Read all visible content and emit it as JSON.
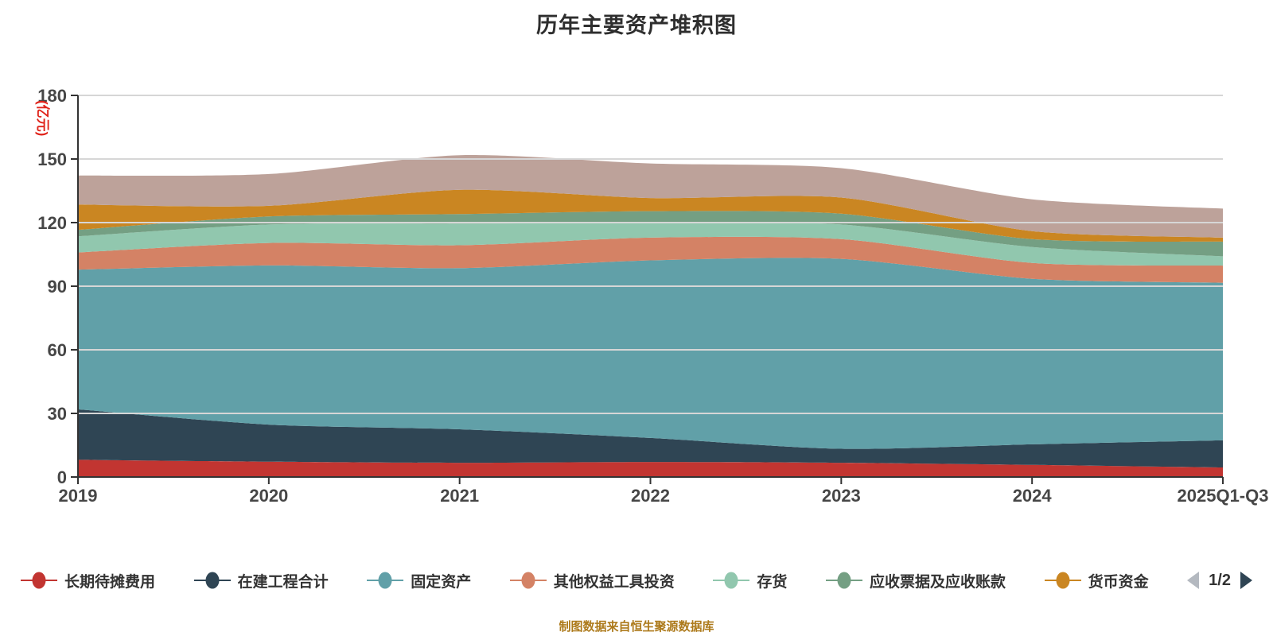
{
  "title": "历年主要资产堆积图",
  "chart_data": {
    "type": "area",
    "stacked": true,
    "smooth": true,
    "title": "历年主要资产堆积图",
    "ylabel": "(亿元)",
    "ylim": [
      0,
      180
    ],
    "ytick_step": 30,
    "grid": true,
    "legend_position": "bottom",
    "categories": [
      "2019",
      "2020",
      "2021",
      "2022",
      "2023",
      "2024",
      "2025Q1-Q3"
    ],
    "series": [
      {
        "name": "长期待摊费用",
        "color": "#c23531",
        "values": [
          8.1,
          7.2,
          6.7,
          7.1,
          6.7,
          5.7,
          4.5
        ]
      },
      {
        "name": "在建工程合计",
        "color": "#2f4554",
        "values": [
          23.8,
          17.5,
          15.8,
          11.3,
          6.6,
          9.7,
          12.8
        ]
      },
      {
        "name": "固定资产",
        "color": "#61a0a8",
        "values": [
          65.9,
          75.1,
          76.0,
          83.8,
          89.6,
          78.1,
          74.3
        ]
      },
      {
        "name": "其他权益工具投资",
        "color": "#d48265",
        "values": [
          8.1,
          10.6,
          10.8,
          10.7,
          9.3,
          7.5,
          8.1
        ]
      },
      {
        "name": "存货",
        "color": "#91c7ae",
        "values": [
          7.6,
          8.7,
          10.2,
          6.8,
          6.9,
          7.5,
          4.4
        ]
      },
      {
        "name": "应收票据及应收账款",
        "color": "#749f83",
        "values": [
          3.1,
          3.8,
          4.5,
          5.7,
          5.1,
          3.7,
          6.9
        ]
      },
      {
        "name": "货币资金",
        "color": "#ca8622",
        "values": [
          11.9,
          5.0,
          11.5,
          6.2,
          7.6,
          3.8,
          1.9
        ]
      },
      {
        "name": "",
        "color": "#bda29a",
        "values": [
          13.7,
          15.0,
          16.3,
          16.3,
          13.9,
          15.0,
          13.7
        ]
      }
    ]
  },
  "legend": {
    "visible_items": [
      "长期待摊费用",
      "在建工程合计",
      "固定资产",
      "其他权益工具投资",
      "存货",
      "应收票据及应收账款",
      "货币资金"
    ],
    "pager": {
      "label": "1/2"
    }
  },
  "footer": {
    "source": "制图数据来自恒生聚源数据库"
  },
  "style": {
    "background": "#ffffff",
    "title_color": "#2e2e2e",
    "axis_label_color": "#464646",
    "axis_line_color": "#333333",
    "grid_color": "#d6d6d6",
    "y_axis_name_color": "#e0241b",
    "footer_color": "#ad7a1b",
    "pager_prev_color": "#b4b9c0",
    "pager_next_color": "#2f4554"
  }
}
